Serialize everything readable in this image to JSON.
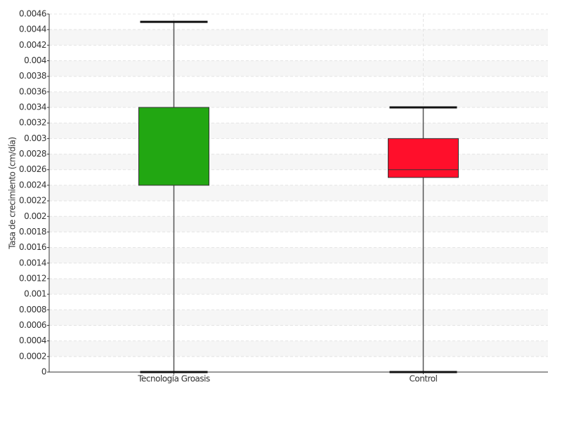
{
  "chart_data": {
    "type": "box",
    "y_label": "Tasa de crecimiento (cm/día)",
    "categories": [
      "Tecnología Groasis",
      "Control"
    ],
    "min": [
      0,
      0
    ],
    "q1": [
      0.0024,
      0.0025
    ],
    "median": [
      0.0034,
      0.0026
    ],
    "q3": [
      0.0034,
      0.003
    ],
    "max": [
      0.0045,
      0.0034
    ],
    "colors": [
      "#22a712",
      "#ff0f2b"
    ],
    "ylim": [
      0,
      0.0046
    ],
    "yticks": [
      0,
      0.0002,
      0.0004,
      0.0006,
      0.0008,
      0.001,
      0.0012,
      0.0014,
      0.0016,
      0.0018,
      0.002,
      0.0022,
      0.0024,
      0.0026,
      0.0028,
      0.003,
      0.0032,
      0.0034,
      0.0036,
      0.0038,
      0.004,
      0.0042,
      0.0044,
      0.0046
    ],
    "grid": true
  }
}
